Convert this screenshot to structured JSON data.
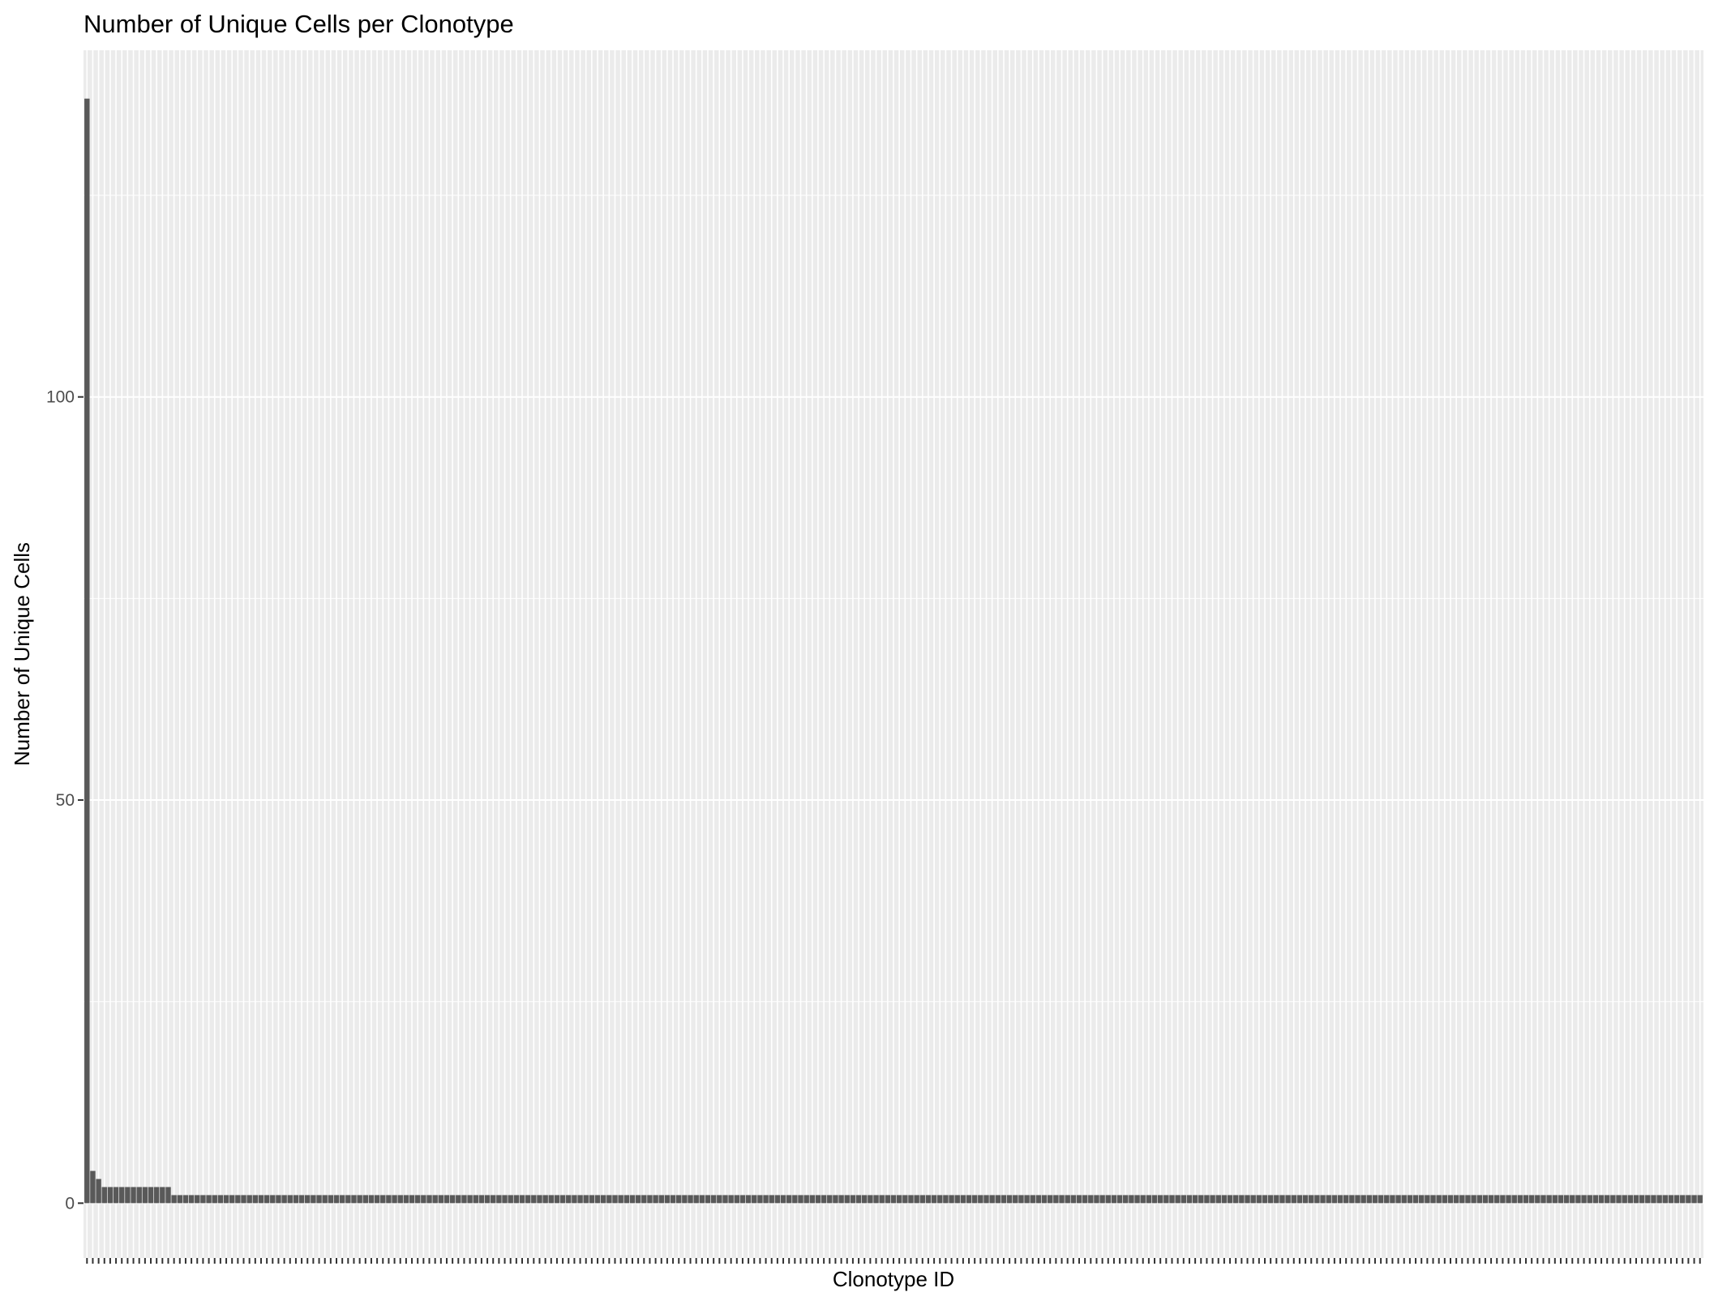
{
  "chart_data": {
    "type": "bar",
    "title": "Number of Unique Cells per Clonotype",
    "xlabel": "Clonotype ID",
    "ylabel": "Number of Unique Cells",
    "ylim": [
      -6.8,
      143
    ],
    "yticks": [
      0,
      50,
      100
    ],
    "ytick_labels": [
      "0",
      "50",
      "100"
    ],
    "x_tick_labels_shown": false,
    "grid": true,
    "panel_background": "#ebebeb",
    "grid_color": "#ffffff",
    "bar_color": "#595959",
    "categories_count": 271,
    "values": [
      137,
      4,
      3,
      2,
      2,
      2,
      2,
      2,
      2,
      2,
      2,
      2,
      2,
      2,
      2,
      1,
      1,
      1,
      1,
      1,
      1,
      1,
      1,
      1,
      1,
      1,
      1,
      1,
      1,
      1,
      1,
      1,
      1,
      1,
      1,
      1,
      1,
      1,
      1,
      1,
      1,
      1,
      1,
      1,
      1,
      1,
      1,
      1,
      1,
      1,
      1,
      1,
      1,
      1,
      1,
      1,
      1,
      1,
      1,
      1,
      1,
      1,
      1,
      1,
      1,
      1,
      1,
      1,
      1,
      1,
      1,
      1,
      1,
      1,
      1,
      1,
      1,
      1,
      1,
      1,
      1,
      1,
      1,
      1,
      1,
      1,
      1,
      1,
      1,
      1,
      1,
      1,
      1,
      1,
      1,
      1,
      1,
      1,
      1,
      1,
      1,
      1,
      1,
      1,
      1,
      1,
      1,
      1,
      1,
      1,
      1,
      1,
      1,
      1,
      1,
      1,
      1,
      1,
      1,
      1,
      1,
      1,
      1,
      1,
      1,
      1,
      1,
      1,
      1,
      1,
      1,
      1,
      1,
      1,
      1,
      1,
      1,
      1,
      1,
      1,
      1,
      1,
      1,
      1,
      1,
      1,
      1,
      1,
      1,
      1,
      1,
      1,
      1,
      1,
      1,
      1,
      1,
      1,
      1,
      1,
      1,
      1,
      1,
      1,
      1,
      1,
      1,
      1,
      1,
      1,
      1,
      1,
      1,
      1,
      1,
      1,
      1,
      1,
      1,
      1,
      1,
      1,
      1,
      1,
      1,
      1,
      1,
      1,
      1,
      1,
      1,
      1,
      1,
      1,
      1,
      1,
      1,
      1,
      1,
      1,
      1,
      1,
      1,
      1,
      1,
      1,
      1,
      1,
      1,
      1,
      1,
      1,
      1,
      1,
      1,
      1,
      1,
      1,
      1,
      1,
      1,
      1,
      1,
      1,
      1,
      1,
      1,
      1,
      1,
      1,
      1,
      1,
      1,
      1,
      1,
      1,
      1,
      1,
      1,
      1,
      1,
      1,
      1,
      1,
      1,
      1,
      1,
      1,
      1,
      1,
      1,
      1,
      1,
      1,
      1,
      1,
      1,
      1,
      1,
      1,
      1,
      1,
      1,
      1,
      1,
      1,
      1,
      1,
      1,
      1,
      1,
      1,
      1,
      1,
      1,
      1,
      1,
      1,
      1
    ]
  }
}
